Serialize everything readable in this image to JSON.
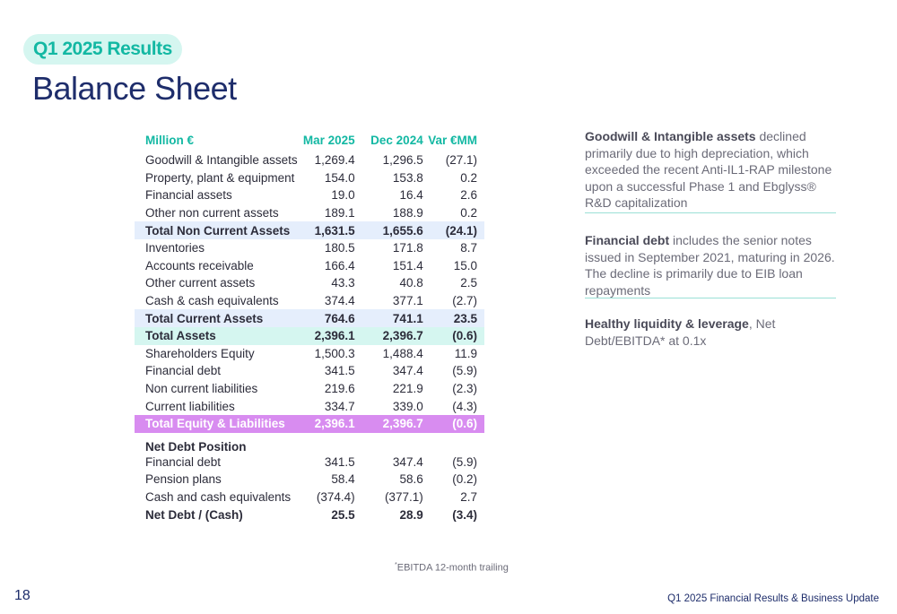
{
  "header": {
    "badge": "Q1 2025 Results",
    "title": "Balance Sheet"
  },
  "table": {
    "columns": [
      "Million €",
      "Mar 2025",
      "Dec 2024",
      "Var €MM"
    ],
    "rows": [
      {
        "label": "Goodwill & Intangible assets",
        "mar2025": "1,269.4",
        "dec2024": "1,296.5",
        "var": "(27.1)"
      },
      {
        "label": "Property, plant & equipment",
        "mar2025": "154.0",
        "dec2024": "153.8",
        "var": "0.2"
      },
      {
        "label": "Financial assets",
        "mar2025": "19.0",
        "dec2024": "16.4",
        "var": "2.6"
      },
      {
        "label": "Other non current assets",
        "mar2025": "189.1",
        "dec2024": "188.9",
        "var": "0.2"
      },
      {
        "label": "Total Non Current Assets",
        "mar2025": "1,631.5",
        "dec2024": "1,655.6",
        "var": "(24.1)"
      },
      {
        "label": "Inventories",
        "mar2025": "180.5",
        "dec2024": "171.8",
        "var": "8.7"
      },
      {
        "label": "Accounts receivable",
        "mar2025": "166.4",
        "dec2024": "151.4",
        "var": "15.0"
      },
      {
        "label": "Other current assets",
        "mar2025": "43.3",
        "dec2024": "40.8",
        "var": "2.5"
      },
      {
        "label": "Cash & cash equivalents",
        "mar2025": "374.4",
        "dec2024": "377.1",
        "var": "(2.7)"
      },
      {
        "label": "Total Current Assets",
        "mar2025": "764.6",
        "dec2024": "741.1",
        "var": "23.5"
      },
      {
        "label": "Total Assets",
        "mar2025": "2,396.1",
        "dec2024": "2,396.7",
        "var": "(0.6)"
      },
      {
        "label": "Shareholders Equity",
        "mar2025": "1,500.3",
        "dec2024": "1,488.4",
        "var": "11.9"
      },
      {
        "label": "Financial debt",
        "mar2025": "341.5",
        "dec2024": "347.4",
        "var": "(5.9)"
      },
      {
        "label": "Non current liabilities",
        "mar2025": "219.6",
        "dec2024": "221.9",
        "var": "(2.3)"
      },
      {
        "label": "Current liabilities",
        "mar2025": "334.7",
        "dec2024": "339.0",
        "var": "(4.3)"
      },
      {
        "label": "Total Equity & Liabilities",
        "mar2025": "2,396.1",
        "dec2024": "2,396.7",
        "var": "(0.6)"
      }
    ],
    "net_debt": {
      "heading": "Net Debt Position",
      "rows": [
        {
          "label": "Financial debt",
          "mar2025": "341.5",
          "dec2024": "347.4",
          "var": "(5.9)"
        },
        {
          "label": "Pension plans",
          "mar2025": "58.4",
          "dec2024": "58.6",
          "var": "(0.2)"
        },
        {
          "label": "Cash and cash equivalents",
          "mar2025": "(374.4)",
          "dec2024": "(377.1)",
          "var": "2.7"
        },
        {
          "label": "Net Debt / (Cash)",
          "mar2025": "25.5",
          "dec2024": "28.9",
          "var": "(3.4)"
        }
      ]
    }
  },
  "notes": [
    {
      "bold": "Goodwill & Intangible assets",
      "text": " declined primarily due to high depreciation, which exceeded the recent Anti-IL1-RAP milestone upon a successful Phase 1 and Ebglyss® R&D capitalization"
    },
    {
      "bold": "Financial debt",
      "text": " includes the senior notes issued in September 2021, maturing in 2026. The decline is primarily due to EIB loan repayments"
    },
    {
      "bold": "Healthy liquidity & leverage",
      "text": ", Net Debt/EBITDA* at 0.1x"
    }
  ],
  "footnote": {
    "marker": "*",
    "text": "EBITDA 12-month trailing"
  },
  "footer": {
    "page_number": "18",
    "title": "Q1 2025 Financial Results & Business Update"
  },
  "colors": {
    "accent": "#13b8a3",
    "navy": "#1e2d6b",
    "highlight_blue": "#e5eefc",
    "highlight_cyan": "#d5f6f0",
    "highlight_purple": "#d88cf0"
  }
}
